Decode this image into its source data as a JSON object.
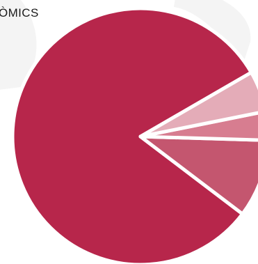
{
  "chart_data": {
    "type": "pie",
    "title": "ÒMICS",
    "slices": [
      {
        "value": 78.5,
        "color": "#b7264b"
      },
      {
        "value": 9.5,
        "color": "#c4566f"
      },
      {
        "value": 3.5,
        "color": "#d77d90"
      },
      {
        "value": 5.0,
        "color": "#e4acb8"
      }
    ],
    "slice_separator_color": "#ffffff",
    "background_watermark_color": "#f4f4f4"
  }
}
